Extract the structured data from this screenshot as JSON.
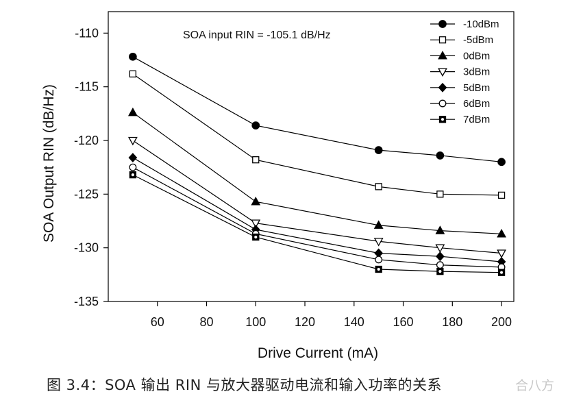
{
  "chart_data": {
    "type": "line",
    "title": "",
    "annotation": "SOA input RIN = -105.1 dB/Hz",
    "xlabel": "Drive Current (mA)",
    "ylabel": "SOA Output RIN (dB/Hz)",
    "x": [
      50,
      100,
      150,
      175,
      200
    ],
    "xlim": [
      40,
      205
    ],
    "ylim": [
      -135,
      -108
    ],
    "xticks": [
      60,
      80,
      100,
      120,
      140,
      160,
      180,
      200
    ],
    "yticks": [
      -110,
      -115,
      -120,
      -125,
      -130,
      -135
    ],
    "legend_position": "top-right",
    "grid": false,
    "series": [
      {
        "name": "-10dBm",
        "marker": "circle-filled",
        "values": [
          -112.2,
          -118.6,
          -120.9,
          -121.4,
          -122.0
        ]
      },
      {
        "name": "-5dBm",
        "marker": "square-open",
        "values": [
          -113.8,
          -121.8,
          -124.3,
          -125.0,
          -125.1
        ]
      },
      {
        "name": "0dBm",
        "marker": "triangle-up-filled",
        "values": [
          -117.4,
          -125.7,
          -127.9,
          -128.4,
          -128.7
        ]
      },
      {
        "name": "3dBm",
        "marker": "triangle-down-open",
        "values": [
          -120.0,
          -127.7,
          -129.4,
          -130.0,
          -130.5
        ]
      },
      {
        "name": "5dBm",
        "marker": "diamond-filled",
        "values": [
          -121.6,
          -128.3,
          -130.5,
          -130.8,
          -131.3
        ]
      },
      {
        "name": "6dBm",
        "marker": "circle-open",
        "values": [
          -122.5,
          -128.7,
          -131.1,
          -131.6,
          -131.8
        ]
      },
      {
        "name": "7dBm",
        "marker": "square-dotted",
        "values": [
          -123.2,
          -129.0,
          -132.0,
          -132.2,
          -132.3
        ]
      }
    ]
  },
  "caption": "图 3.4：SOA 输出 RIN 与放大器驱动电流和输入功率的关系",
  "watermark": "合八方"
}
